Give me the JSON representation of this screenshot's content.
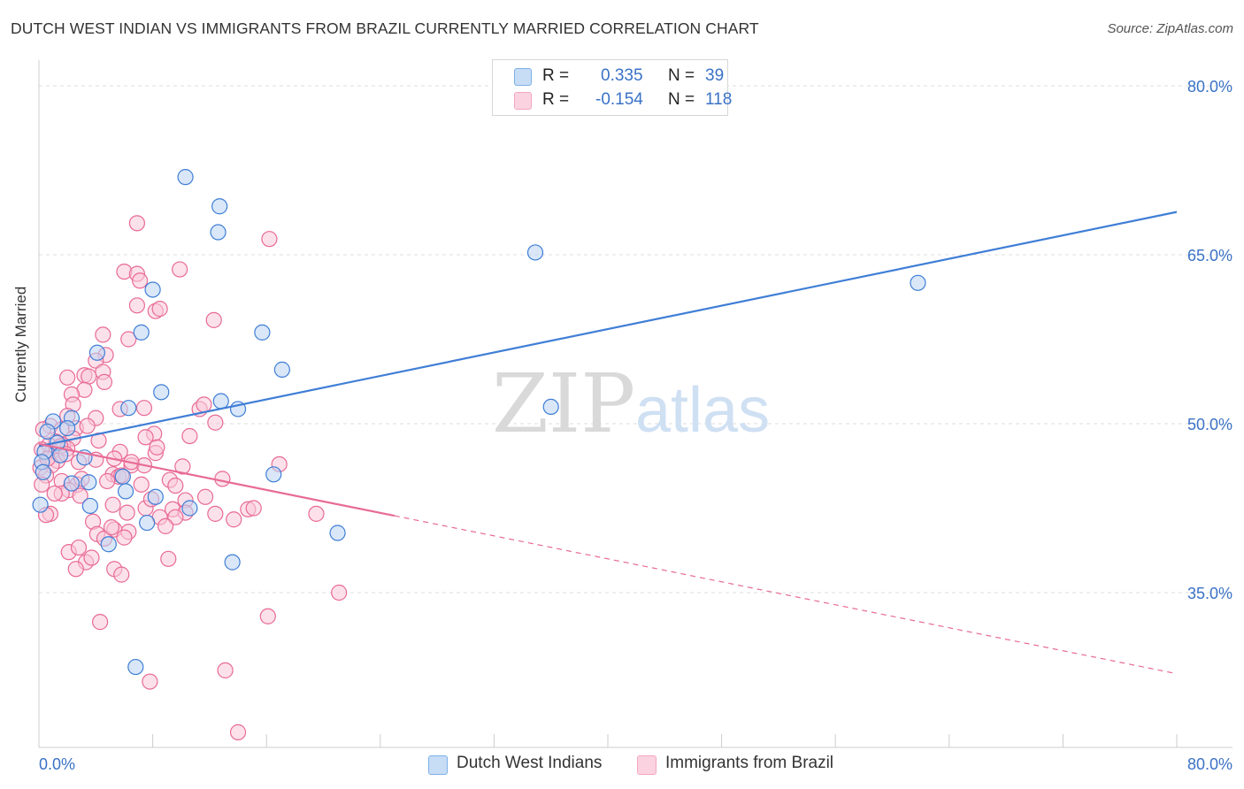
{
  "header": {
    "title": "DUTCH WEST INDIAN VS IMMIGRANTS FROM BRAZIL CURRENTLY MARRIED CORRELATION CHART",
    "source": "Source: ZipAtlas.com"
  },
  "legend": {
    "r_label": "R =",
    "n_label": "N =",
    "rows": [
      {
        "r": "0.335",
        "n": "39",
        "color": "#7fb0e8"
      },
      {
        "r": "-0.154",
        "n": "118",
        "color": "#f4a6bf"
      }
    ]
  },
  "bottom_legend": [
    "Dutch West Indians",
    "Immigrants from Brazil"
  ],
  "watermark": {
    "zip": "ZIP",
    "atlas": "atlas"
  },
  "chart_data": {
    "type": "scatter",
    "ylabel": "Currently Married",
    "x_tick_labels": [
      "0.0%",
      "80.0%"
    ],
    "y_tick_labels": [
      "80.0%",
      "65.0%",
      "50.0%",
      "35.0%"
    ],
    "xlim": [
      0,
      80
    ],
    "ylim": [
      21,
      81.5
    ],
    "y_gridlines": [
      80,
      65,
      50,
      35
    ],
    "colors": {
      "blue": "#3f7ed6",
      "pink": "#e86a95",
      "blue_fill": "#b9d4f3",
      "pink_fill": "#f9c9d8"
    },
    "series": [
      {
        "name": "Dutch West Indians",
        "trend": {
          "x": [
            0,
            80
          ],
          "y": [
            48.0,
            68.8
          ],
          "solid_until": 80
        },
        "points": [
          [
            10.3,
            71.9
          ],
          [
            12.7,
            69.3
          ],
          [
            12.6,
            67.0
          ],
          [
            34.9,
            65.2
          ],
          [
            61.8,
            62.5
          ],
          [
            8.0,
            61.9
          ],
          [
            7.2,
            58.1
          ],
          [
            15.7,
            58.1
          ],
          [
            4.1,
            56.3
          ],
          [
            17.1,
            54.8
          ],
          [
            8.6,
            52.8
          ],
          [
            12.8,
            52.0
          ],
          [
            6.3,
            51.4
          ],
          [
            14.0,
            51.3
          ],
          [
            36.0,
            51.5
          ],
          [
            2.3,
            50.5
          ],
          [
            1.0,
            50.2
          ],
          [
            2.0,
            49.6
          ],
          [
            0.6,
            49.3
          ],
          [
            1.3,
            48.3
          ],
          [
            0.4,
            47.5
          ],
          [
            1.5,
            47.2
          ],
          [
            3.2,
            47.0
          ],
          [
            0.2,
            46.6
          ],
          [
            16.5,
            45.5
          ],
          [
            5.9,
            45.3
          ],
          [
            3.5,
            44.8
          ],
          [
            2.3,
            44.7
          ],
          [
            6.1,
            44.0
          ],
          [
            8.2,
            43.5
          ],
          [
            10.6,
            42.5
          ],
          [
            3.6,
            42.7
          ],
          [
            0.1,
            42.8
          ],
          [
            7.6,
            41.2
          ],
          [
            21.0,
            40.3
          ],
          [
            4.9,
            39.3
          ],
          [
            13.6,
            37.7
          ],
          [
            6.8,
            28.4
          ],
          [
            0.3,
            45.7
          ]
        ]
      },
      {
        "name": "Immigrants from Brazil",
        "trend": {
          "x": [
            0,
            80
          ],
          "y": [
            48.2,
            27.8
          ],
          "solid_until": 25
        },
        "points": [
          [
            6.9,
            67.8
          ],
          [
            16.2,
            66.4
          ],
          [
            6.0,
            63.5
          ],
          [
            9.9,
            63.7
          ],
          [
            6.9,
            63.3
          ],
          [
            7.1,
            62.7
          ],
          [
            6.9,
            60.5
          ],
          [
            8.2,
            60.0
          ],
          [
            8.5,
            60.2
          ],
          [
            12.3,
            59.2
          ],
          [
            4.5,
            57.9
          ],
          [
            6.3,
            57.5
          ],
          [
            4.7,
            56.1
          ],
          [
            4.0,
            55.6
          ],
          [
            4.5,
            54.6
          ],
          [
            3.2,
            54.3
          ],
          [
            2.0,
            54.1
          ],
          [
            3.5,
            54.2
          ],
          [
            4.6,
            53.7
          ],
          [
            3.2,
            53.0
          ],
          [
            2.3,
            52.6
          ],
          [
            2.4,
            51.7
          ],
          [
            7.4,
            51.4
          ],
          [
            5.7,
            51.3
          ],
          [
            11.3,
            51.3
          ],
          [
            11.6,
            51.7
          ],
          [
            4.0,
            50.5
          ],
          [
            12.4,
            50.1
          ],
          [
            0.8,
            49.8
          ],
          [
            1.6,
            49.5
          ],
          [
            2.6,
            49.6
          ],
          [
            0.3,
            49.5
          ],
          [
            8.1,
            49.1
          ],
          [
            7.5,
            48.8
          ],
          [
            10.6,
            48.9
          ],
          [
            1.2,
            48.4
          ],
          [
            2.4,
            48.7
          ],
          [
            1.7,
            48.1
          ],
          [
            0.7,
            48.1
          ],
          [
            2.0,
            47.8
          ],
          [
            0.9,
            47.5
          ],
          [
            5.7,
            47.5
          ],
          [
            8.2,
            47.4
          ],
          [
            1.3,
            46.7
          ],
          [
            4.0,
            46.8
          ],
          [
            5.3,
            46.9
          ],
          [
            0.9,
            46.3
          ],
          [
            2.8,
            46.6
          ],
          [
            16.9,
            46.4
          ],
          [
            6.5,
            46.3
          ],
          [
            7.4,
            46.3
          ],
          [
            0.1,
            46.1
          ],
          [
            0.5,
            45.4
          ],
          [
            5.2,
            45.5
          ],
          [
            5.6,
            45.3
          ],
          [
            5.8,
            45.4
          ],
          [
            1.6,
            44.9
          ],
          [
            2.7,
            44.6
          ],
          [
            0.2,
            44.6
          ],
          [
            2.1,
            44.1
          ],
          [
            1.6,
            43.8
          ],
          [
            2.9,
            43.6
          ],
          [
            10.3,
            43.2
          ],
          [
            5.2,
            42.8
          ],
          [
            7.5,
            42.5
          ],
          [
            9.4,
            42.4
          ],
          [
            12.4,
            42.0
          ],
          [
            14.7,
            42.4
          ],
          [
            10.3,
            42.1
          ],
          [
            9.6,
            41.7
          ],
          [
            8.5,
            41.7
          ],
          [
            13.7,
            41.5
          ],
          [
            19.5,
            42.0
          ],
          [
            0.8,
            42.0
          ],
          [
            3.8,
            41.3
          ],
          [
            6.3,
            40.4
          ],
          [
            4.1,
            40.2
          ],
          [
            5.3,
            40.6
          ],
          [
            6.0,
            39.9
          ],
          [
            4.6,
            39.8
          ],
          [
            2.1,
            38.6
          ],
          [
            9.1,
            38.0
          ],
          [
            3.3,
            37.7
          ],
          [
            2.6,
            37.1
          ],
          [
            5.3,
            37.1
          ],
          [
            5.8,
            36.6
          ],
          [
            21.1,
            35.0
          ],
          [
            16.1,
            32.9
          ],
          [
            4.3,
            32.4
          ],
          [
            13.1,
            28.1
          ],
          [
            7.8,
            27.1
          ],
          [
            14.0,
            22.6
          ],
          [
            8.9,
            40.9
          ],
          [
            11.7,
            43.5
          ],
          [
            15.1,
            42.5
          ],
          [
            3.0,
            45.1
          ],
          [
            1.1,
            43.8
          ],
          [
            6.5,
            46.6
          ],
          [
            9.2,
            45.0
          ],
          [
            4.2,
            48.5
          ],
          [
            3.4,
            49.8
          ],
          [
            2.0,
            50.7
          ],
          [
            1.5,
            48.0
          ],
          [
            4.8,
            44.9
          ],
          [
            6.2,
            42.1
          ],
          [
            7.2,
            44.6
          ],
          [
            0.5,
            41.9
          ],
          [
            3.7,
            38.1
          ],
          [
            10.1,
            46.2
          ],
          [
            8.3,
            47.9
          ],
          [
            0.2,
            47.7
          ],
          [
            0.6,
            46.9
          ],
          [
            1.9,
            47.3
          ],
          [
            12.9,
            45.1
          ],
          [
            5.1,
            40.8
          ],
          [
            2.8,
            39.0
          ],
          [
            9.6,
            44.5
          ],
          [
            7.9,
            43.3
          ]
        ]
      }
    ]
  }
}
